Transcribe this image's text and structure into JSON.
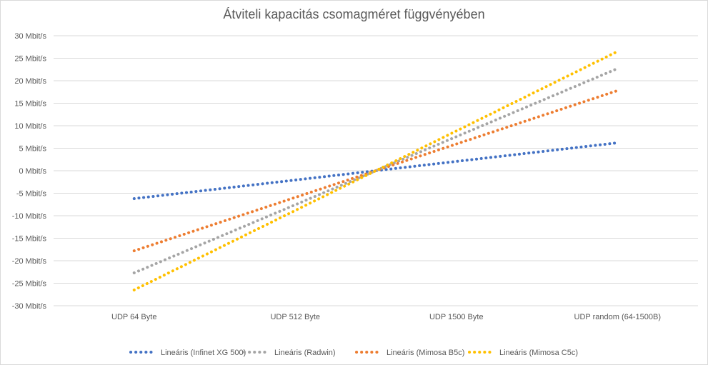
{
  "chart_data": {
    "type": "line",
    "title": "Átviteli kapacitás csomagméret függvényében",
    "xlabel": "",
    "ylabel": "",
    "categories": [
      "UDP 64 Byte",
      "UDP 512 Byte",
      "UDP 1500 Byte",
      "UDP random (64-1500B)"
    ],
    "ylim": [
      -30,
      30
    ],
    "ytick_step": 5,
    "ytick_labels": [
      "-30 Mbit/s",
      "-25 Mbit/s",
      "-20 Mbit/s",
      "-15 Mbit/s",
      "-10 Mbit/s",
      "-5 Mbit/s",
      "0 Mbit/s",
      "5 Mbit/s",
      "10 Mbit/s",
      "15 Mbit/s",
      "20 Mbit/s",
      "25 Mbit/s",
      "30 Mbit/s"
    ],
    "grid": true,
    "legend_position": "bottom",
    "line_style": "dotted",
    "series": [
      {
        "name": "Lineáris (Infinet XG 500)",
        "color": "#4472c4",
        "values": [
          -6.2,
          -2.1,
          2.1,
          6.2
        ]
      },
      {
        "name": "Lineáris (Radwin)",
        "color": "#a5a5a5",
        "values": [
          -22.7,
          -7.6,
          7.6,
          22.7
        ]
      },
      {
        "name": "Lineáris (Mimosa B5c)",
        "color": "#ed7d31",
        "values": [
          -17.8,
          -5.9,
          5.9,
          17.8
        ]
      },
      {
        "name": "Lineáris (Mimosa C5c)",
        "color": "#ffc000",
        "values": [
          -26.5,
          -8.8,
          8.8,
          26.5
        ]
      }
    ]
  }
}
